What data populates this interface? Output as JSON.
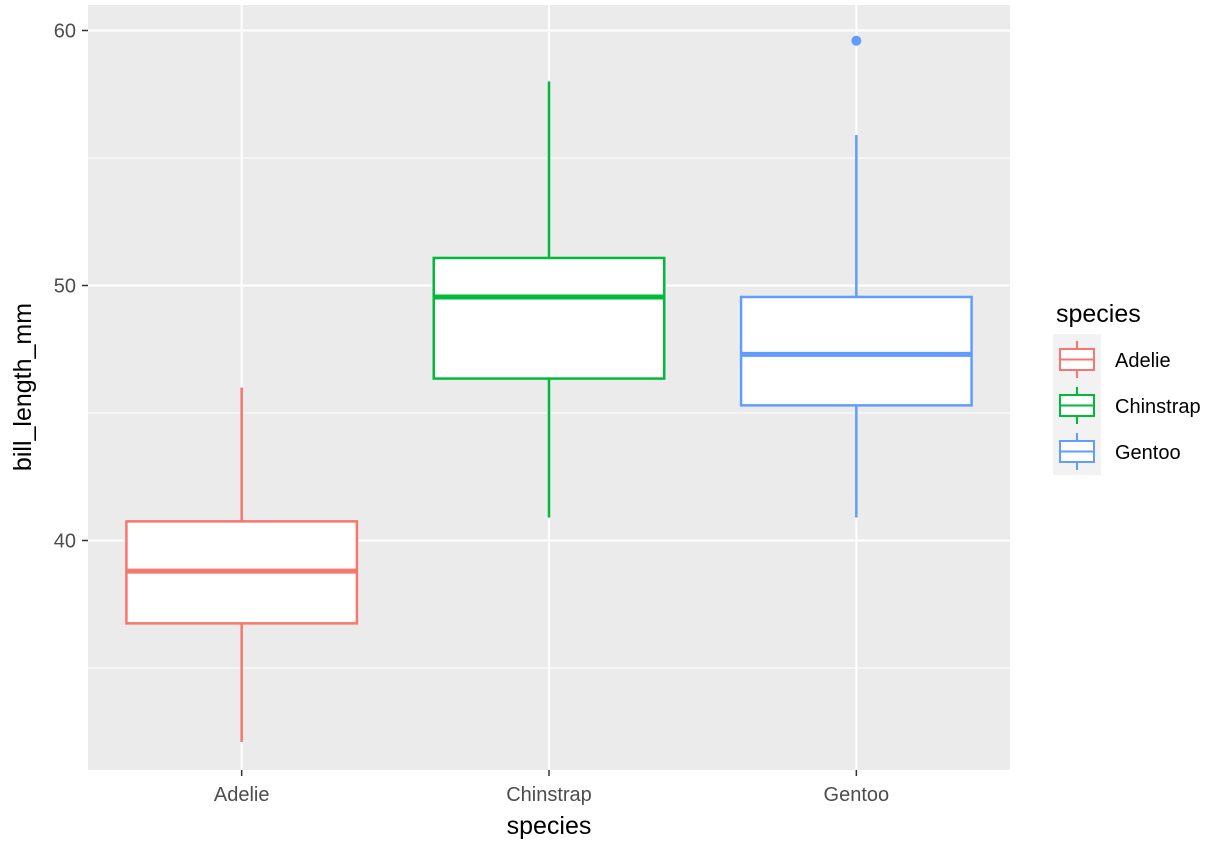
{
  "chart_data": {
    "type": "boxplot",
    "xlabel": "species",
    "ylabel": "bill_length_mm",
    "categories": [
      "Adelie",
      "Chinstrap",
      "Gentoo"
    ],
    "ylim": [
      31.0,
      61.0
    ],
    "yticks": [
      40,
      50,
      60
    ],
    "yticks_minor": [
      35,
      45,
      55
    ],
    "grid": true,
    "legend": {
      "title": "species",
      "position": "right",
      "entries": [
        "Adelie",
        "Chinstrap",
        "Gentoo"
      ]
    },
    "series": [
      {
        "category": "Adelie",
        "color": "#F8766D",
        "min": 32.1,
        "q1": 36.75,
        "median": 38.8,
        "q3": 40.75,
        "max": 46.0,
        "outliers": []
      },
      {
        "category": "Chinstrap",
        "color": "#00BA38",
        "min": 40.9,
        "q1": 46.35,
        "median": 49.55,
        "q3": 51.08,
        "max": 58.0,
        "outliers": []
      },
      {
        "category": "Gentoo",
        "color": "#619CFF",
        "min": 40.9,
        "q1": 45.3,
        "median": 47.3,
        "q3": 49.55,
        "max": 55.9,
        "outliers": [
          59.6
        ]
      }
    ]
  }
}
